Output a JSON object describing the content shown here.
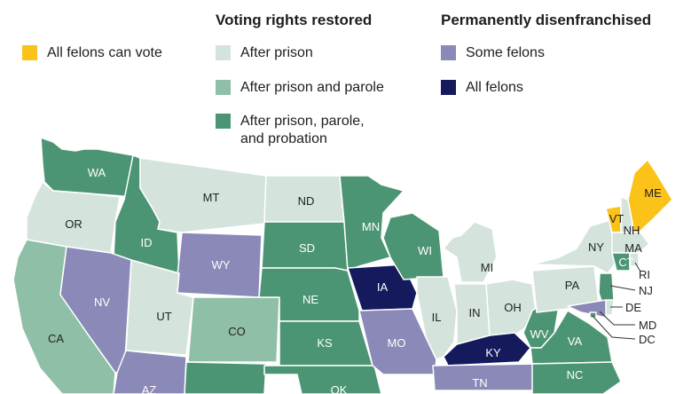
{
  "legend": {
    "heading_restored": "Voting rights restored",
    "heading_perm": "Permanently disenfranchised",
    "all_vote": "All felons can vote",
    "after_prison": "After prison",
    "after_parole": "After prison and parole",
    "after_probation_1": "After prison, parole,",
    "after_probation_2": "and probation",
    "some_felons": "Some felons",
    "all_felons": "All felons"
  },
  "colors": {
    "all_vote": "#fbc21a",
    "after_prison": "#d4e4dc",
    "after_parole": "#8fbfa7",
    "after_probation": "#4c9574",
    "some_felons": "#8a89b7",
    "all_felons": "#141a5c"
  },
  "states": {
    "WA": "WA",
    "OR": "OR",
    "CA": "CA",
    "ID": "ID",
    "NV": "NV",
    "MT": "MT",
    "WY": "WY",
    "UT": "UT",
    "AZ": "AZ",
    "CO": "CO",
    "ND": "ND",
    "SD": "SD",
    "NE": "NE",
    "KS": "KS",
    "OK": "OK",
    "MN": "MN",
    "IA": "IA",
    "MO": "MO",
    "WI": "WI",
    "IL": "IL",
    "MI": "MI",
    "IN": "IN",
    "OH": "OH",
    "KY": "KY",
    "TN": "TN",
    "WV": "WV",
    "VA": "VA",
    "NC": "NC",
    "PA": "PA",
    "NY": "NY",
    "VT": "VT",
    "NH": "NH",
    "ME": "ME",
    "MA": "MA",
    "CT": "CT",
    "RI": "RI",
    "NJ": "NJ",
    "DE": "DE",
    "MD": "MD",
    "DC": "DC"
  }
}
